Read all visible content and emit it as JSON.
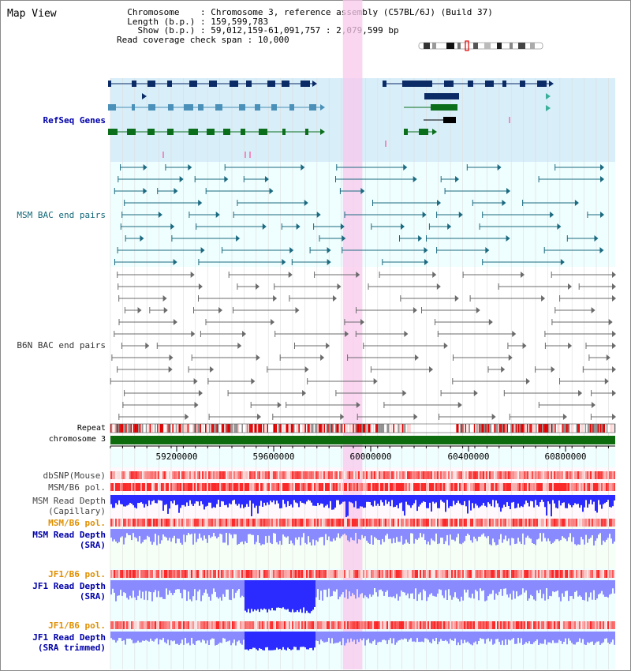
{
  "view": {
    "title": "Map View"
  },
  "info": {
    "chromosome_key": "Chromosome",
    "chromosome_val": "Chromosome 3, reference assembly (C57BL/6J) (Build 37)",
    "length_key": "Length (b.p.)",
    "length_val": "159,599,783",
    "show_key": "Show (b.p.)",
    "show_val": "59,012,159-61,091,757 : 2,079,599 bp",
    "span_key": "Read coverage check span",
    "span_val": "10,000"
  },
  "tracks": {
    "refseq": "RefSeq Genes",
    "msm_bac": "MSM BAC end pairs",
    "b6n_bac": "B6N BAC end pairs",
    "repeat": "Repeat",
    "chromosome": "chromosome 3",
    "dbsnp": "dbSNP(Mouse)",
    "msm_b6_pol": "MSM/B6 pol.",
    "msm_depth_cap_1": "MSM Read Depth",
    "msm_depth_cap_2": "(Capillary)",
    "msm_b6_pol_sra": "MSM/B6 pol.",
    "msm_depth_sra_1": "MSM Read Depth",
    "msm_depth_sra_2": "(SRA)",
    "jf1_b6_pol": "JF1/B6 pol.",
    "jf1_depth_1": "JF1 Read Depth",
    "jf1_depth_2": "(SRA)",
    "jf1_b6_pol_trim": "JF1/B6 pol.",
    "jf1_trim_1": "JF1 Read Depth",
    "jf1_trim_2": "(SRA trimmed)"
  },
  "axis": {
    "ticks": [
      "59200000",
      "59600000",
      "60000000",
      "60400000",
      "60800000"
    ]
  },
  "highlight": {
    "start_bp": 59970000,
    "end_bp": 60050000
  },
  "colors": {
    "refseq_bg": "#d8eef9",
    "bac_bg": "#effefe",
    "depth_bg": "#f5fff5",
    "highlight": "#f8c8ec",
    "gene_dark": "#0b2b66",
    "gene_mid": "#4a90b8",
    "gene_green": "#0a6e1a",
    "bac_msm": "#1b6a80",
    "bac_b6n": "#6b6b6b",
    "chrom_bar": "#0d6b0d",
    "depth_blue": "#2b2bff",
    "depth_light": "#8a8aff",
    "pol_red": "#e63232"
  }
}
